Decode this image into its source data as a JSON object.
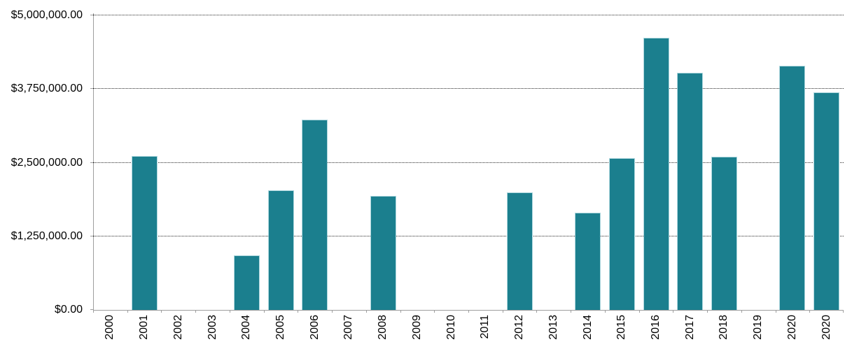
{
  "chart_data": {
    "type": "bar",
    "title": "",
    "xlabel": "",
    "ylabel": "",
    "legend": "none",
    "grid": "horizontal-dotted",
    "x_label_rotation": 90,
    "ylim": [
      0,
      5000000
    ],
    "y_ticks": [
      "$5,000,000.00",
      "$3,750,000.00",
      "$2,500,000.00",
      "$1,250,000.00",
      "$0.00"
    ],
    "y_tick_values": [
      5000000,
      3750000,
      2500000,
      1250000,
      0
    ],
    "categories": [
      "2000",
      "2001",
      "2002",
      "2003",
      "2004",
      "2005",
      "2006",
      "2007",
      "2008",
      "2009",
      "2010",
      "2011",
      "2012",
      "2013",
      "2014",
      "2015",
      "2016",
      "2017",
      "2018",
      "2019",
      "2020",
      "2020"
    ],
    "values": [
      null,
      2610000,
      null,
      null,
      930000,
      2030000,
      3230000,
      null,
      1930000,
      null,
      null,
      null,
      1990000,
      null,
      1650000,
      2580000,
      4620000,
      4030000,
      2600000,
      null,
      4150000,
      3690000
    ],
    "colors": {
      "bar_fill": "#1b7f8e",
      "bar_border": "#aed7de",
      "axis_line": "#9e9e9e",
      "gridline": "#2b2b2b",
      "label_text": "#000000",
      "background": "#ffffff"
    }
  }
}
